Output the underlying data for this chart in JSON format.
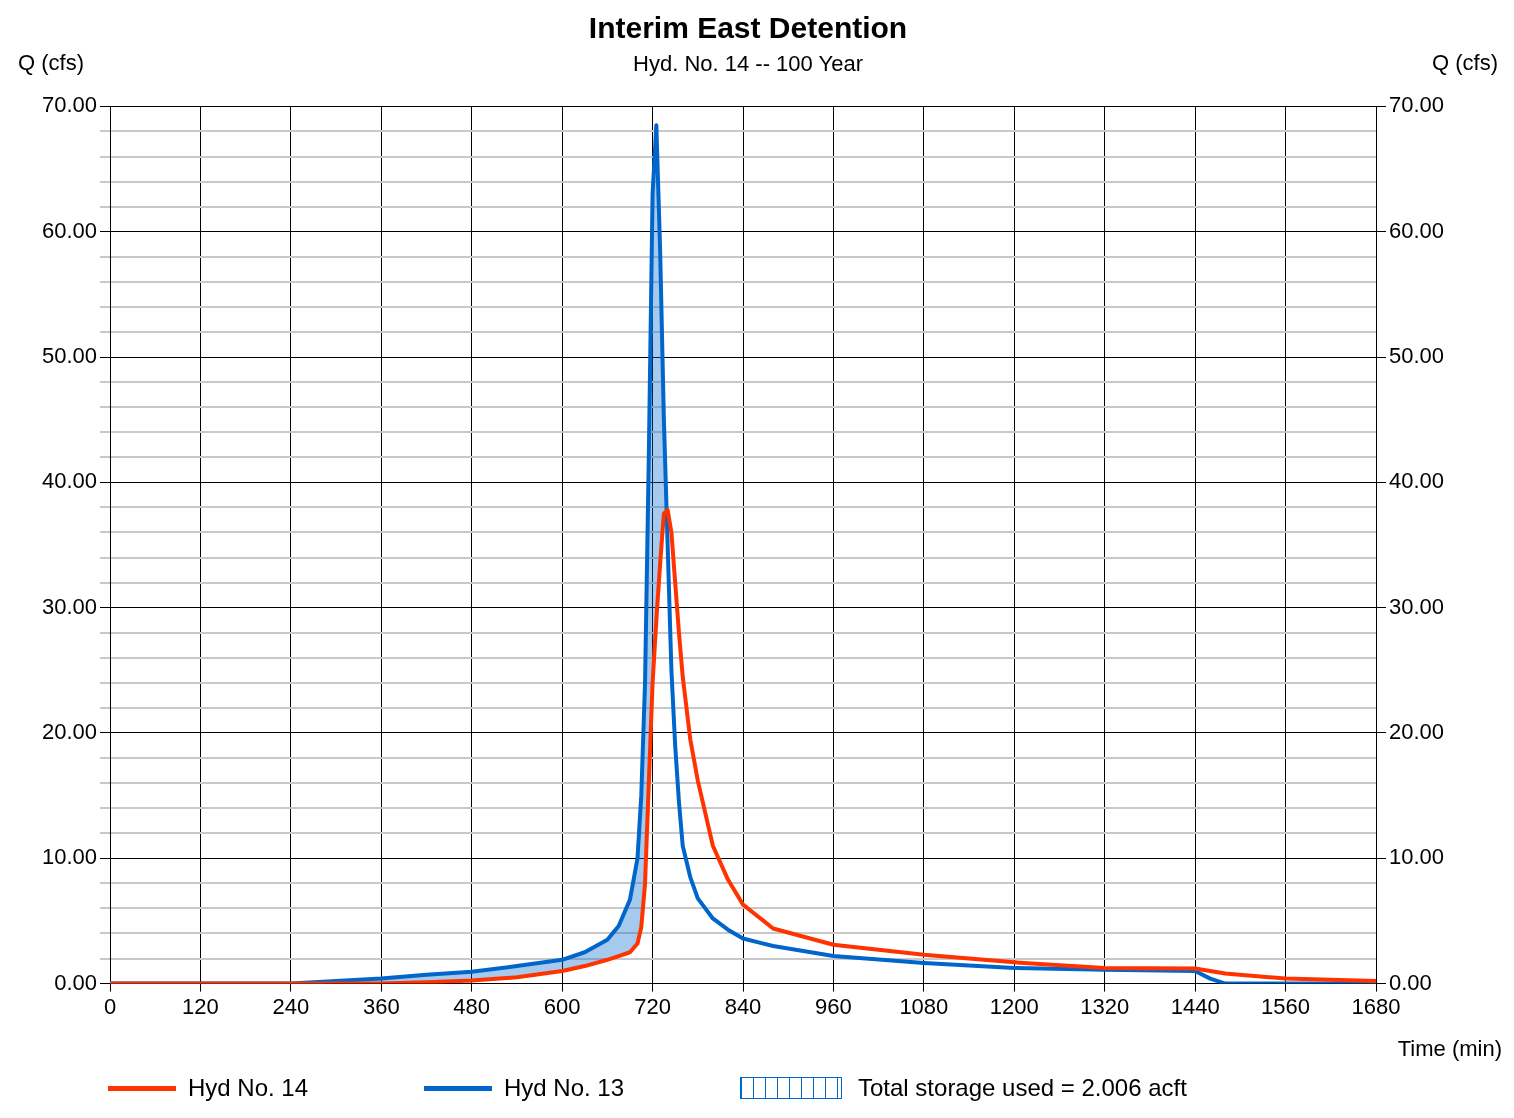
{
  "chart_data": {
    "type": "line",
    "title": "Interim East Detention",
    "subtitle": "Hyd. No. 14 -- 100 Year",
    "xlabel": "Time (min)",
    "ylabel": "Q (cfs)",
    "y2label": "Q (cfs)",
    "x": [
      0,
      120,
      240,
      300,
      360,
      420,
      480,
      540,
      600,
      630,
      660,
      675,
      690,
      700,
      705,
      710,
      715,
      720,
      725,
      730,
      735,
      740,
      745,
      750,
      755,
      760,
      770,
      780,
      800,
      820,
      840,
      880,
      960,
      1080,
      1200,
      1320,
      1440,
      1460,
      1480,
      1560,
      1680
    ],
    "series": [
      {
        "name": "Hyd No. 14",
        "color": "#ff3300",
        "values": [
          0,
          0,
          0,
          0,
          0,
          0.1,
          0.25,
          0.5,
          1.0,
          1.4,
          1.9,
          2.2,
          2.5,
          3.2,
          4.5,
          8,
          16,
          24,
          29,
          33.5,
          37.5,
          37.8,
          36,
          32,
          28,
          24.5,
          19.5,
          16.2,
          11,
          8.3,
          6.3,
          4.4,
          3.1,
          2.3,
          1.7,
          1.25,
          1.2,
          1.0,
          0.8,
          0.4,
          0.2
        ]
      },
      {
        "name": "Hyd No. 13",
        "color": "#0066cc",
        "values": [
          0,
          0,
          0,
          0.2,
          0.4,
          0.7,
          0.95,
          1.4,
          1.9,
          2.5,
          3.5,
          4.6,
          6.7,
          10,
          15,
          24,
          42,
          63,
          68.5,
          58.6,
          45,
          35,
          25,
          19,
          14.5,
          11,
          8.5,
          6.8,
          5.2,
          4.3,
          3.6,
          3.0,
          2.2,
          1.65,
          1.25,
          1.1,
          1.0,
          0.4,
          0,
          0,
          0
        ]
      }
    ],
    "annotations": [
      "Total storage used = 2.006 acft"
    ],
    "xlim": [
      0,
      1680
    ],
    "xticks": [
      0,
      120,
      240,
      360,
      480,
      600,
      720,
      840,
      960,
      1080,
      1200,
      1320,
      1440,
      1560,
      1680
    ],
    "ylim": [
      0,
      70
    ],
    "yticks": [
      {
        "value": 0,
        "label": "0.00"
      },
      {
        "value": 2,
        "label": null
      },
      {
        "value": 4,
        "label": null
      },
      {
        "value": 6,
        "label": null
      },
      {
        "value": 8,
        "label": null
      },
      {
        "value": 10,
        "label": "10.00"
      },
      {
        "value": 12,
        "label": null
      },
      {
        "value": 14,
        "label": null
      },
      {
        "value": 16,
        "label": null
      },
      {
        "value": 18,
        "label": null
      },
      {
        "value": 20,
        "label": "20.00"
      },
      {
        "value": 22,
        "label": null
      },
      {
        "value": 24,
        "label": null
      },
      {
        "value": 26,
        "label": null
      },
      {
        "value": 28,
        "label": null
      },
      {
        "value": 30,
        "label": "30.00"
      },
      {
        "value": 32,
        "label": null
      },
      {
        "value": 34,
        "label": null
      },
      {
        "value": 36,
        "label": null
      },
      {
        "value": 38,
        "label": null
      },
      {
        "value": 40,
        "label": "40.00"
      },
      {
        "value": 42,
        "label": null
      },
      {
        "value": 44,
        "label": null
      },
      {
        "value": 46,
        "label": null
      },
      {
        "value": 48,
        "label": null
      },
      {
        "value": 50,
        "label": "50.00"
      },
      {
        "value": 52,
        "label": null
      },
      {
        "value": 54,
        "label": null
      },
      {
        "value": 56,
        "label": null
      },
      {
        "value": 58,
        "label": null
      },
      {
        "value": 60,
        "label": "60.00"
      },
      {
        "value": 62,
        "label": null
      },
      {
        "value": 64,
        "label": null
      },
      {
        "value": 66,
        "label": null
      },
      {
        "value": 68,
        "label": null
      },
      {
        "value": 70,
        "label": "70.00"
      }
    ],
    "y2lim": [
      0,
      70
    ],
    "y2ticks": [
      {
        "value": 0,
        "label": "0.00"
      },
      {
        "value": 10,
        "label": "10.00"
      },
      {
        "value": 20,
        "label": "20.00"
      },
      {
        "value": 30,
        "label": "30.00"
      },
      {
        "value": 40,
        "label": "40.00"
      },
      {
        "value": 50,
        "label": "50.00"
      },
      {
        "value": 60,
        "label": "60.00"
      },
      {
        "value": 70,
        "label": "70.00"
      }
    ],
    "grid": true,
    "legend": "bottom",
    "marker": "none",
    "line_style": "solid"
  }
}
